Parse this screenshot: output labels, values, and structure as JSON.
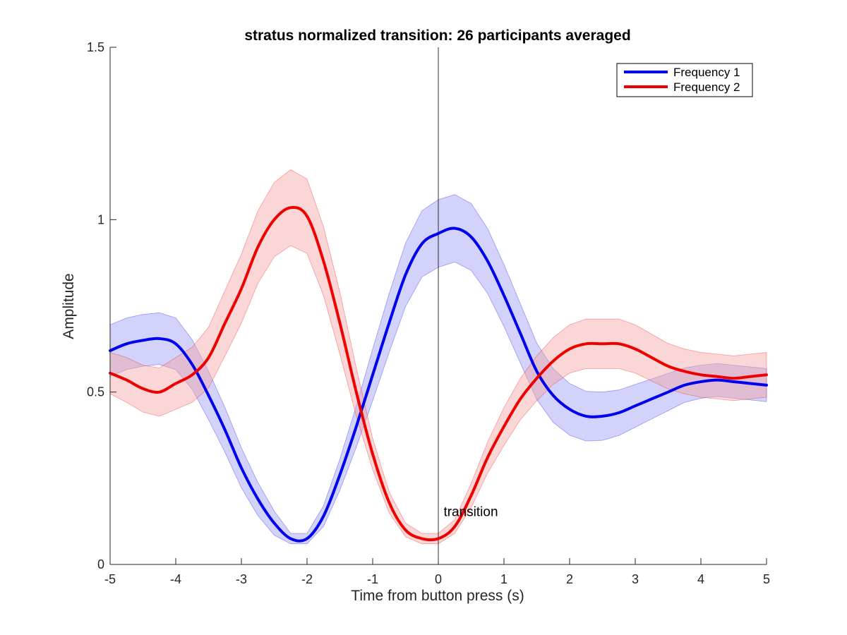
{
  "chart_data": {
    "type": "line",
    "title": "stratus normalized transition: 26 participants averaged",
    "xlabel": "Time from button press (s)",
    "ylabel": "Amplitude",
    "xlim": [
      -5,
      5
    ],
    "ylim": [
      0,
      1.5
    ],
    "xticks": [
      -5,
      -4,
      -3,
      -2,
      -1,
      0,
      1,
      2,
      3,
      4,
      5
    ],
    "xtick_labels": [
      "-5",
      "-4",
      "-3",
      "-2",
      "-1",
      "0",
      "1",
      "2",
      "3",
      "4",
      "5"
    ],
    "yticks": [
      0,
      0.5,
      1,
      1.5
    ],
    "ytick_labels": [
      "0",
      "0.5",
      "1",
      "1.5"
    ],
    "grid": false,
    "legend_position": "top-right",
    "annotation": {
      "text": "transition",
      "x": 0.08,
      "y": 0.14
    },
    "vline_x": 0,
    "x": [
      -5,
      -4.75,
      -4.5,
      -4.25,
      -4,
      -3.75,
      -3.5,
      -3.25,
      -3,
      -2.75,
      -2.5,
      -2.25,
      -2,
      -1.75,
      -1.5,
      -1.25,
      -1,
      -0.75,
      -0.5,
      -0.25,
      0,
      0.25,
      0.5,
      0.75,
      1,
      1.25,
      1.5,
      1.75,
      2,
      2.25,
      2.5,
      2.75,
      3,
      3.25,
      3.5,
      3.75,
      4,
      4.25,
      4.5,
      4.75,
      5
    ],
    "series": [
      {
        "name": "Frequency 1",
        "color": "#0000ee",
        "band_color": "#9b9bf5",
        "values": [
          0.62,
          0.64,
          0.65,
          0.655,
          0.64,
          0.58,
          0.49,
          0.39,
          0.28,
          0.19,
          0.12,
          0.075,
          0.075,
          0.14,
          0.26,
          0.4,
          0.55,
          0.7,
          0.84,
          0.93,
          0.96,
          0.975,
          0.95,
          0.88,
          0.78,
          0.67,
          0.56,
          0.49,
          0.45,
          0.43,
          0.43,
          0.44,
          0.46,
          0.48,
          0.5,
          0.52,
          0.53,
          0.535,
          0.53,
          0.525,
          0.52
        ],
        "band_width": [
          0.075,
          0.075,
          0.075,
          0.075,
          0.075,
          0.072,
          0.07,
          0.065,
          0.058,
          0.048,
          0.035,
          0.015,
          0.015,
          0.03,
          0.045,
          0.06,
          0.075,
          0.085,
          0.092,
          0.096,
          0.098,
          0.098,
          0.097,
          0.094,
          0.09,
          0.086,
          0.082,
          0.078,
          0.075,
          0.072,
          0.07,
          0.066,
          0.062,
          0.058,
          0.054,
          0.05,
          0.048,
          0.048,
          0.048,
          0.048,
          0.048
        ]
      },
      {
        "name": "Frequency 2",
        "color": "#ee0000",
        "band_color": "#f5a3a3",
        "values": [
          0.555,
          0.535,
          0.51,
          0.5,
          0.525,
          0.55,
          0.6,
          0.7,
          0.8,
          0.92,
          1.0,
          1.035,
          1.01,
          0.88,
          0.7,
          0.5,
          0.32,
          0.18,
          0.1,
          0.075,
          0.075,
          0.11,
          0.2,
          0.31,
          0.4,
          0.48,
          0.54,
          0.59,
          0.625,
          0.64,
          0.64,
          0.64,
          0.625,
          0.6,
          0.575,
          0.56,
          0.55,
          0.545,
          0.54,
          0.545,
          0.55
        ],
        "band_width": [
          0.06,
          0.065,
          0.068,
          0.07,
          0.075,
          0.08,
          0.088,
          0.095,
          0.1,
          0.105,
          0.108,
          0.11,
          0.108,
          0.1,
          0.09,
          0.07,
          0.045,
          0.03,
          0.02,
          0.015,
          0.015,
          0.02,
          0.035,
          0.045,
          0.055,
          0.06,
          0.065,
          0.068,
          0.07,
          0.072,
          0.072,
          0.072,
          0.07,
          0.068,
          0.066,
          0.065,
          0.065,
          0.065,
          0.065,
          0.065,
          0.065
        ]
      }
    ]
  }
}
